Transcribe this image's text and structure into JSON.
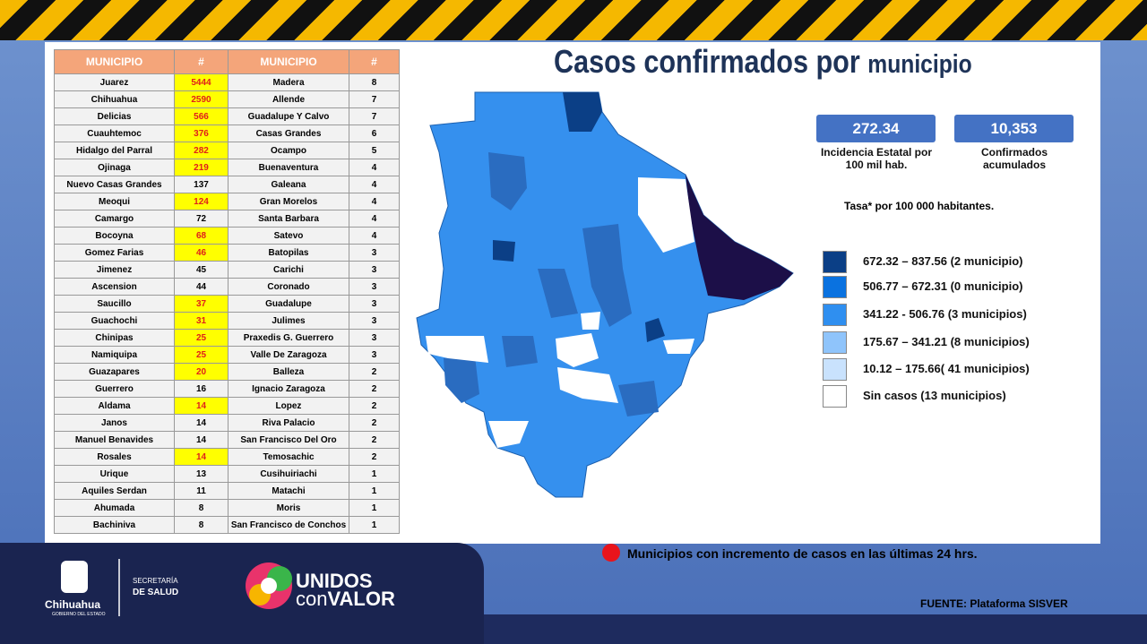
{
  "header": {
    "title_main": "Casos confirmados por",
    "title_small": "municipio"
  },
  "table": {
    "columns": [
      "MUNICIPIO",
      "#",
      "MUNICIPIO",
      "#"
    ],
    "left": [
      {
        "name": "Juarez",
        "count": 5444,
        "highlight": true
      },
      {
        "name": "Chihuahua",
        "count": 2590,
        "highlight": true
      },
      {
        "name": "Delicias",
        "count": 566,
        "highlight": true
      },
      {
        "name": "Cuauhtemoc",
        "count": 376,
        "highlight": true
      },
      {
        "name": "Hidalgo del Parral",
        "count": 282,
        "highlight": true
      },
      {
        "name": "Ojinaga",
        "count": 219,
        "highlight": true
      },
      {
        "name": "Nuevo Casas Grandes",
        "count": 137,
        "highlight": false
      },
      {
        "name": "Meoqui",
        "count": 124,
        "highlight": true
      },
      {
        "name": "Camargo",
        "count": 72,
        "highlight": false
      },
      {
        "name": "Bocoyna",
        "count": 68,
        "highlight": true
      },
      {
        "name": "Gomez Farias",
        "count": 46,
        "highlight": true
      },
      {
        "name": "Jimenez",
        "count": 45,
        "highlight": false
      },
      {
        "name": "Ascension",
        "count": 44,
        "highlight": false
      },
      {
        "name": "Saucillo",
        "count": 37,
        "highlight": true
      },
      {
        "name": "Guachochi",
        "count": 31,
        "highlight": true
      },
      {
        "name": "Chinipas",
        "count": 25,
        "highlight": true
      },
      {
        "name": "Namiquipa",
        "count": 25,
        "highlight": true
      },
      {
        "name": "Guazapares",
        "count": 20,
        "highlight": true
      },
      {
        "name": "Guerrero",
        "count": 16,
        "highlight": false
      },
      {
        "name": "Aldama",
        "count": 14,
        "highlight": true
      },
      {
        "name": "Janos",
        "count": 14,
        "highlight": false
      },
      {
        "name": "Manuel Benavides",
        "count": 14,
        "highlight": false
      },
      {
        "name": "Rosales",
        "count": 14,
        "highlight": true
      },
      {
        "name": "Urique",
        "count": 13,
        "highlight": false
      },
      {
        "name": "Aquiles Serdan",
        "count": 11,
        "highlight": false
      },
      {
        "name": "Ahumada",
        "count": 8,
        "highlight": false
      },
      {
        "name": "Bachiniva",
        "count": 8,
        "highlight": false
      }
    ],
    "right": [
      {
        "name": "Madera",
        "count": 8
      },
      {
        "name": "Allende",
        "count": 7
      },
      {
        "name": "Guadalupe Y Calvo",
        "count": 7
      },
      {
        "name": "Casas Grandes",
        "count": 6
      },
      {
        "name": "Ocampo",
        "count": 5
      },
      {
        "name": "Buenaventura",
        "count": 4
      },
      {
        "name": "Galeana",
        "count": 4
      },
      {
        "name": "Gran Morelos",
        "count": 4
      },
      {
        "name": "Santa Barbara",
        "count": 4
      },
      {
        "name": "Satevo",
        "count": 4
      },
      {
        "name": "Batopilas",
        "count": 3
      },
      {
        "name": "Carichi",
        "count": 3
      },
      {
        "name": "Coronado",
        "count": 3
      },
      {
        "name": "Guadalupe",
        "count": 3
      },
      {
        "name": "Julimes",
        "count": 3
      },
      {
        "name": "Praxedis G. Guerrero",
        "count": 3
      },
      {
        "name": "Valle De Zaragoza",
        "count": 3
      },
      {
        "name": "Balleza",
        "count": 2
      },
      {
        "name": "Ignacio Zaragoza",
        "count": 2
      },
      {
        "name": "Lopez",
        "count": 2
      },
      {
        "name": "Riva Palacio",
        "count": 2
      },
      {
        "name": "San Francisco Del Oro",
        "count": 2
      },
      {
        "name": "Temosachic",
        "count": 2
      },
      {
        "name": "Cusihuiriachi",
        "count": 1
      },
      {
        "name": "Matachi",
        "count": 1
      },
      {
        "name": "Moris",
        "count": 1
      },
      {
        "name": "San Francisco de Conchos",
        "count": 1
      }
    ]
  },
  "stats": [
    {
      "value": "272.34",
      "label": "Incidencia Estatal por 100 mil hab."
    },
    {
      "value": "10,353",
      "label": "Confirmados acumulados"
    }
  ],
  "legend": {
    "title": "Tasa* por 100 000 habitantes.",
    "items": [
      {
        "label": "672.32 – 837.56 (2 municipio)",
        "color": "#0b3f86"
      },
      {
        "label": "506.77 – 672.31 (0 municipio)",
        "color": "#0a72e0"
      },
      {
        "label": "341.22  - 506.76 (3 municipios)",
        "color": "#2f8ff0"
      },
      {
        "label": "175.67 – 341.21 (8 municipios)",
        "color": "#8fc4fb"
      },
      {
        "label": "10.12 – 175.66( 41 municipios)",
        "color": "#c9e2fd"
      },
      {
        "label": "Sin casos (13 municipios)",
        "color": "#ffffff"
      }
    ]
  },
  "note": "Municipios con incremento de casos en las últimas 24 hrs.",
  "source": "FUENTE: Plataforma SISVER",
  "footer": {
    "state": "Chihuahua",
    "gov": "GOBIERNO DEL ESTADO",
    "sec1": "SECRETARÍA",
    "sec2": "DE SALUD",
    "brand1": "UNIDOS",
    "brand2a": "con",
    "brand2b": "VALOR"
  }
}
